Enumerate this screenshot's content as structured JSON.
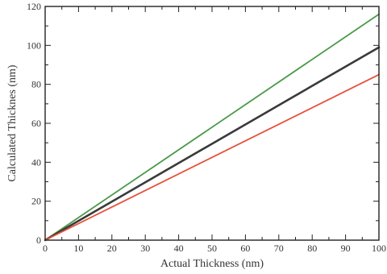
{
  "chart_data": {
    "type": "line",
    "xlabel": "Actual Thickness (nm)",
    "ylabel": "Calculated Thicknes (nm)",
    "xlim": [
      0,
      100
    ],
    "ylim": [
      0,
      120
    ],
    "x_ticks": [
      "0",
      "10",
      "20",
      "30",
      "40",
      "50",
      "60",
      "70",
      "80",
      "90",
      "100"
    ],
    "y_ticks": [
      "0",
      "20",
      "40",
      "60",
      "80",
      "100",
      "120"
    ],
    "grid": false,
    "legend": "none",
    "series": [
      {
        "color": "#4a9a4a",
        "x": [
          0,
          100
        ],
        "y": [
          0,
          116
        ]
      },
      {
        "color": "#3a3a3a",
        "x": [
          0,
          100
        ],
        "y": [
          0,
          99
        ]
      },
      {
        "color": "#e8503a",
        "x": [
          0,
          100
        ],
        "y": [
          0,
          85
        ]
      }
    ]
  }
}
